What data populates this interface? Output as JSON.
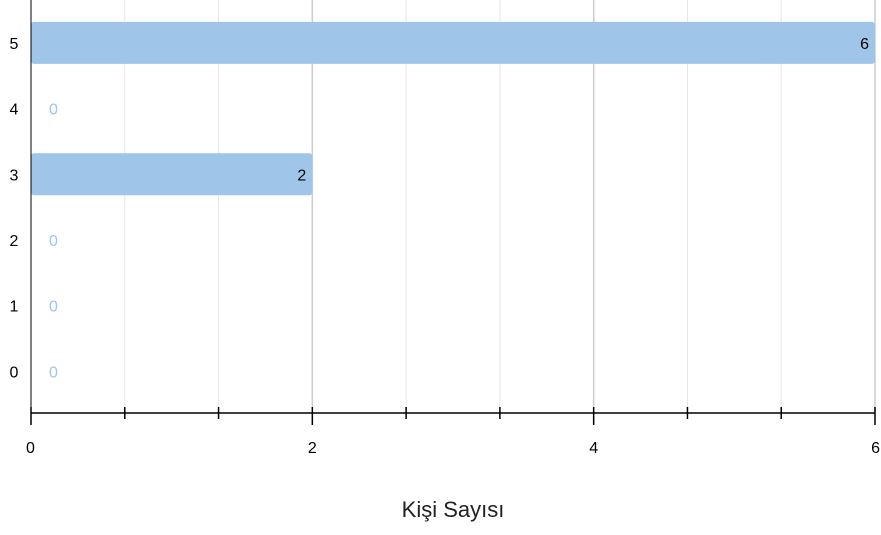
{
  "chart_data": {
    "type": "bar",
    "orientation": "horizontal",
    "categories": [
      "5",
      "4",
      "3",
      "2",
      "1",
      "0"
    ],
    "values": [
      6,
      0,
      2,
      0,
      0,
      0
    ],
    "title": "",
    "xlabel": "Kişi Sayısı",
    "ylabel": "",
    "xlim": [
      0,
      6
    ],
    "x_ticks": [
      0,
      2,
      4,
      6
    ],
    "x_tick_labels": [
      "0",
      "2",
      "4",
      "6"
    ],
    "data_labels": [
      "6",
      "0",
      "2",
      "0",
      "0",
      "0"
    ],
    "grid": true,
    "bar_color": "#9fc5e8",
    "zero_label_color": "#9fc5e8",
    "label_color": "#000000",
    "axis_color": "#000000",
    "major_grid_color": "#cccccc",
    "minor_grid_color": "#e6e6e6"
  }
}
